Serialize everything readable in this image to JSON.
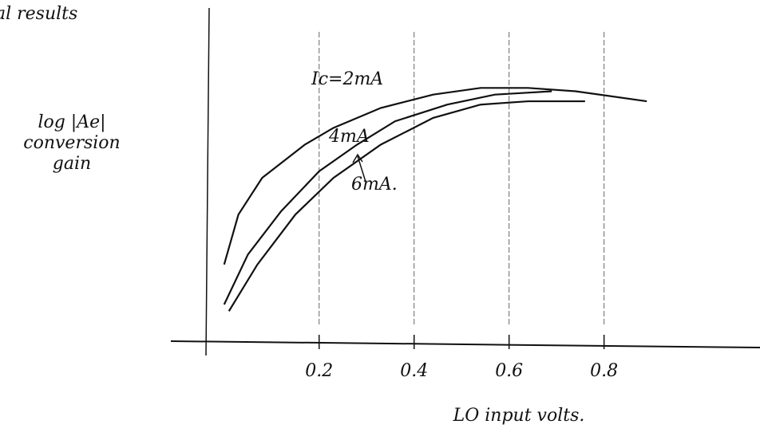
{
  "chart_data": {
    "type": "line",
    "title": "al results",
    "ylabel": "log |Ae| conversion gain",
    "xlabel": "LO input volts.",
    "xlim": [
      -0.04,
      1.12
    ],
    "ylim": [
      0,
      10
    ],
    "xticks": [
      0.2,
      0.4,
      0.6,
      0.8
    ],
    "grid": true,
    "series": [
      {
        "name": "Ic=2mA",
        "color": "#111111",
        "x": [
          0.0,
          0.03,
          0.08,
          0.17,
          0.23,
          0.33,
          0.44,
          0.54,
          0.64,
          0.74,
          0.89
        ],
        "values": [
          2.3,
          3.8,
          4.9,
          5.9,
          6.4,
          7.0,
          7.4,
          7.6,
          7.6,
          7.5,
          7.2
        ]
      },
      {
        "name": "4mA",
        "color": "#111111",
        "x": [
          0.0,
          0.05,
          0.12,
          0.2,
          0.28,
          0.36,
          0.47,
          0.57,
          0.69
        ],
        "values": [
          1.1,
          2.6,
          3.9,
          5.1,
          5.9,
          6.6,
          7.1,
          7.4,
          7.5
        ]
      },
      {
        "name": "6mA.",
        "color": "#111111",
        "x": [
          0.01,
          0.07,
          0.15,
          0.23,
          0.33,
          0.44,
          0.54,
          0.64,
          0.76
        ],
        "values": [
          0.9,
          2.3,
          3.8,
          4.9,
          5.9,
          6.7,
          7.1,
          7.2,
          7.2
        ]
      }
    ]
  }
}
